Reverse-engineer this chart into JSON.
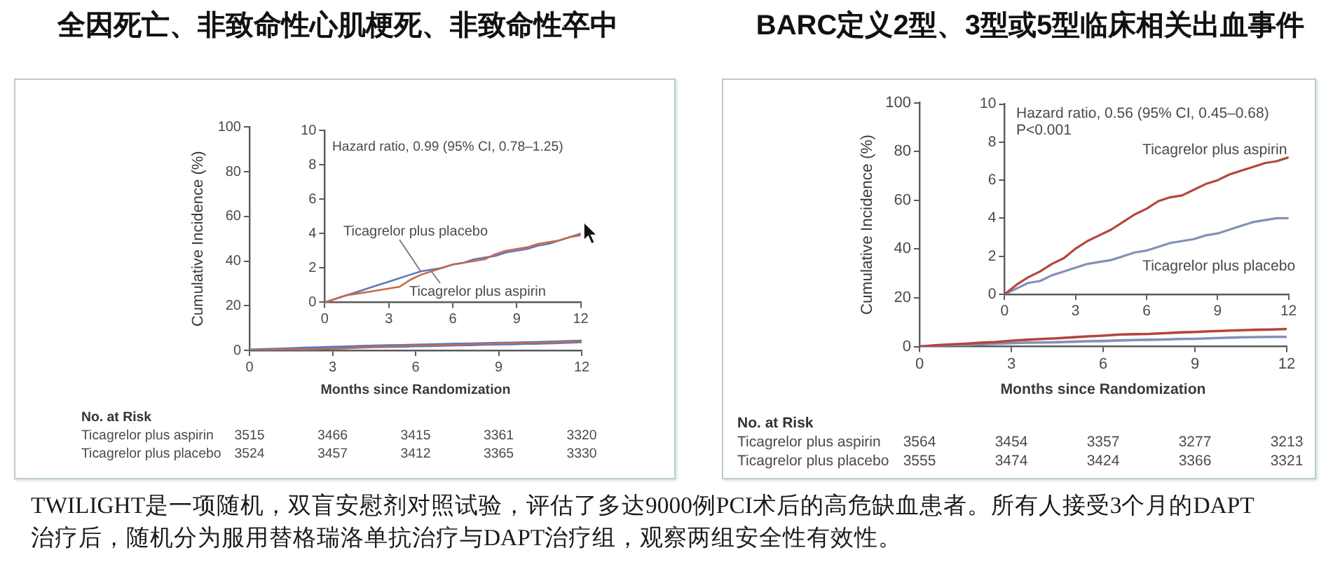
{
  "chart_data": [
    {
      "type": "line",
      "title": "全因死亡、非致命性心肌梗死、非致命性卒中",
      "xlabel": "Months since Randomization",
      "ylabel": "Cumulative Incidence (%)",
      "x": [
        0,
        0.5,
        1,
        1.5,
        2,
        2.5,
        3,
        3.5,
        4,
        4.5,
        5,
        5.5,
        6,
        6.5,
        7,
        7.5,
        8,
        8.5,
        9,
        9.5,
        10,
        10.5,
        11,
        11.5,
        12
      ],
      "series": [
        {
          "color": "#c8694a",
          "values": [
            0,
            0.2,
            0.4,
            0.5,
            0.6,
            0.7,
            0.8,
            0.9,
            1.3,
            1.6,
            1.8,
            2.0,
            2.2,
            2.3,
            2.4,
            2.5,
            2.8,
            3.0,
            3.1,
            3.2,
            3.4,
            3.5,
            3.6,
            3.8,
            3.9
          ]
        },
        {
          "color": "#5f78bd",
          "values": [
            0,
            0.2,
            0.4,
            0.6,
            0.8,
            1.0,
            1.2,
            1.4,
            1.6,
            1.8,
            1.9,
            2.0,
            2.2,
            2.3,
            2.5,
            2.6,
            2.7,
            2.9,
            3.0,
            3.1,
            3.3,
            3.4,
            3.6,
            3.8,
            4.0
          ]
        }
      ],
      "xlim": [
        0,
        12
      ],
      "xticks": [
        0,
        3,
        6,
        9,
        12
      ],
      "ylim": [
        0,
        100
      ],
      "yticks": [
        0,
        20,
        40,
        60,
        80,
        100
      ],
      "annotations": [
        "No. at Risk",
        "Ticagrelor plus aspirin",
        "3515",
        "3466",
        "3415",
        "3361",
        "3320",
        "Ticagrelor plus placebo",
        "3524",
        "3457",
        "3412",
        "3365",
        "3330"
      ]
    },
    {
      "type": "line",
      "x": [
        0,
        0.5,
        1,
        1.5,
        2,
        2.5,
        3,
        3.5,
        4,
        4.5,
        5,
        5.5,
        6,
        6.5,
        7,
        7.5,
        8,
        8.5,
        9,
        9.5,
        10,
        10.5,
        11,
        11.5,
        12
      ],
      "series": [
        {
          "name": "Ticagrelor plus aspirin",
          "color": "#c8694a",
          "values": [
            0,
            0.2,
            0.4,
            0.5,
            0.6,
            0.7,
            0.8,
            0.9,
            1.3,
            1.6,
            1.8,
            2.0,
            2.2,
            2.3,
            2.4,
            2.5,
            2.8,
            3.0,
            3.1,
            3.2,
            3.4,
            3.5,
            3.6,
            3.8,
            3.9
          ]
        },
        {
          "name": "Ticagrelor plus placebo",
          "color": "#5f78bd",
          "values": [
            0,
            0.2,
            0.4,
            0.6,
            0.8,
            1.0,
            1.2,
            1.4,
            1.6,
            1.8,
            1.9,
            2.0,
            2.2,
            2.3,
            2.5,
            2.6,
            2.7,
            2.9,
            3.0,
            3.1,
            3.3,
            3.4,
            3.6,
            3.8,
            4.0
          ]
        }
      ],
      "xlim": [
        0,
        12
      ],
      "xticks": [
        0,
        3,
        6,
        9,
        12
      ],
      "ylim": [
        0,
        10
      ],
      "yticks": [
        0,
        2,
        4,
        6,
        8,
        10
      ],
      "annotations": [
        "Hazard ratio, 0.99 (95% CI, 0.78–1.25)"
      ]
    },
    {
      "type": "line",
      "title": "BARC定义2型、3型或5型临床相关出血事件",
      "xlabel": "Months since Randomization",
      "ylabel": "Cumulative Incidence (%)",
      "x": [
        0,
        0.5,
        1,
        1.5,
        2,
        2.5,
        3,
        3.5,
        4,
        4.5,
        5,
        5.5,
        6,
        6.5,
        7,
        7.5,
        8,
        8.5,
        9,
        9.5,
        10,
        10.5,
        11,
        11.5,
        12
      ],
      "series": [
        {
          "color": "#b5463c",
          "values": [
            0,
            0.5,
            0.9,
            1.2,
            1.6,
            1.9,
            2.4,
            2.8,
            3.1,
            3.4,
            3.8,
            4.2,
            4.5,
            4.9,
            5.1,
            5.2,
            5.5,
            5.8,
            6.0,
            6.3,
            6.5,
            6.7,
            6.9,
            7.0,
            7.2
          ]
        },
        {
          "color": "#8490b8",
          "values": [
            0,
            0.3,
            0.6,
            0.7,
            1.0,
            1.2,
            1.4,
            1.6,
            1.7,
            1.8,
            2.0,
            2.2,
            2.3,
            2.5,
            2.7,
            2.8,
            2.9,
            3.1,
            3.2,
            3.4,
            3.6,
            3.8,
            3.9,
            4.0,
            4.0
          ]
        }
      ],
      "xlim": [
        0,
        12
      ],
      "xticks": [
        0,
        3,
        6,
        9,
        12
      ],
      "ylim": [
        0,
        100
      ],
      "yticks": [
        0,
        20,
        40,
        60,
        80,
        100
      ],
      "annotations": [
        "No. at Risk",
        "Ticagrelor plus aspirin",
        "3564",
        "3454",
        "3357",
        "3277",
        "3213",
        "Ticagrelor plus placebo",
        "3555",
        "3474",
        "3424",
        "3366",
        "3321"
      ]
    },
    {
      "type": "line",
      "x": [
        0,
        0.5,
        1,
        1.5,
        2,
        2.5,
        3,
        3.5,
        4,
        4.5,
        5,
        5.5,
        6,
        6.5,
        7,
        7.5,
        8,
        8.5,
        9,
        9.5,
        10,
        10.5,
        11,
        11.5,
        12
      ],
      "series": [
        {
          "name": "Ticagrelor plus aspirin",
          "color": "#b5463c",
          "values": [
            0,
            0.5,
            0.9,
            1.2,
            1.6,
            1.9,
            2.4,
            2.8,
            3.1,
            3.4,
            3.8,
            4.2,
            4.5,
            4.9,
            5.1,
            5.2,
            5.5,
            5.8,
            6.0,
            6.3,
            6.5,
            6.7,
            6.9,
            7.0,
            7.2
          ]
        },
        {
          "name": "Ticagrelor plus placebo",
          "color": "#8490b8",
          "values": [
            0,
            0.3,
            0.6,
            0.7,
            1.0,
            1.2,
            1.4,
            1.6,
            1.7,
            1.8,
            2.0,
            2.2,
            2.3,
            2.5,
            2.7,
            2.8,
            2.9,
            3.1,
            3.2,
            3.4,
            3.6,
            3.8,
            3.9,
            4.0,
            4.0
          ]
        }
      ],
      "xlim": [
        0,
        12
      ],
      "xticks": [
        0,
        3,
        6,
        9,
        12
      ],
      "ylim": [
        0,
        10
      ],
      "yticks": [
        0,
        2,
        4,
        6,
        8,
        10
      ],
      "annotations": [
        "Hazard ratio, 0.56 (95% CI, 0.45–0.68)",
        "P<0.001"
      ]
    },
    {
      "type": "other",
      "annotations": [
        "TWILIGHT是一项随机，双盲安慰剂对照试验，评估了多达9000例PCI术后的高危缺血患者。所有人接受3个月的DAPT治疗后，随机分为服用替格瑞洛单抗治疗与DAPT治疗组，观察两组安全性有效性。"
      ]
    }
  ]
}
